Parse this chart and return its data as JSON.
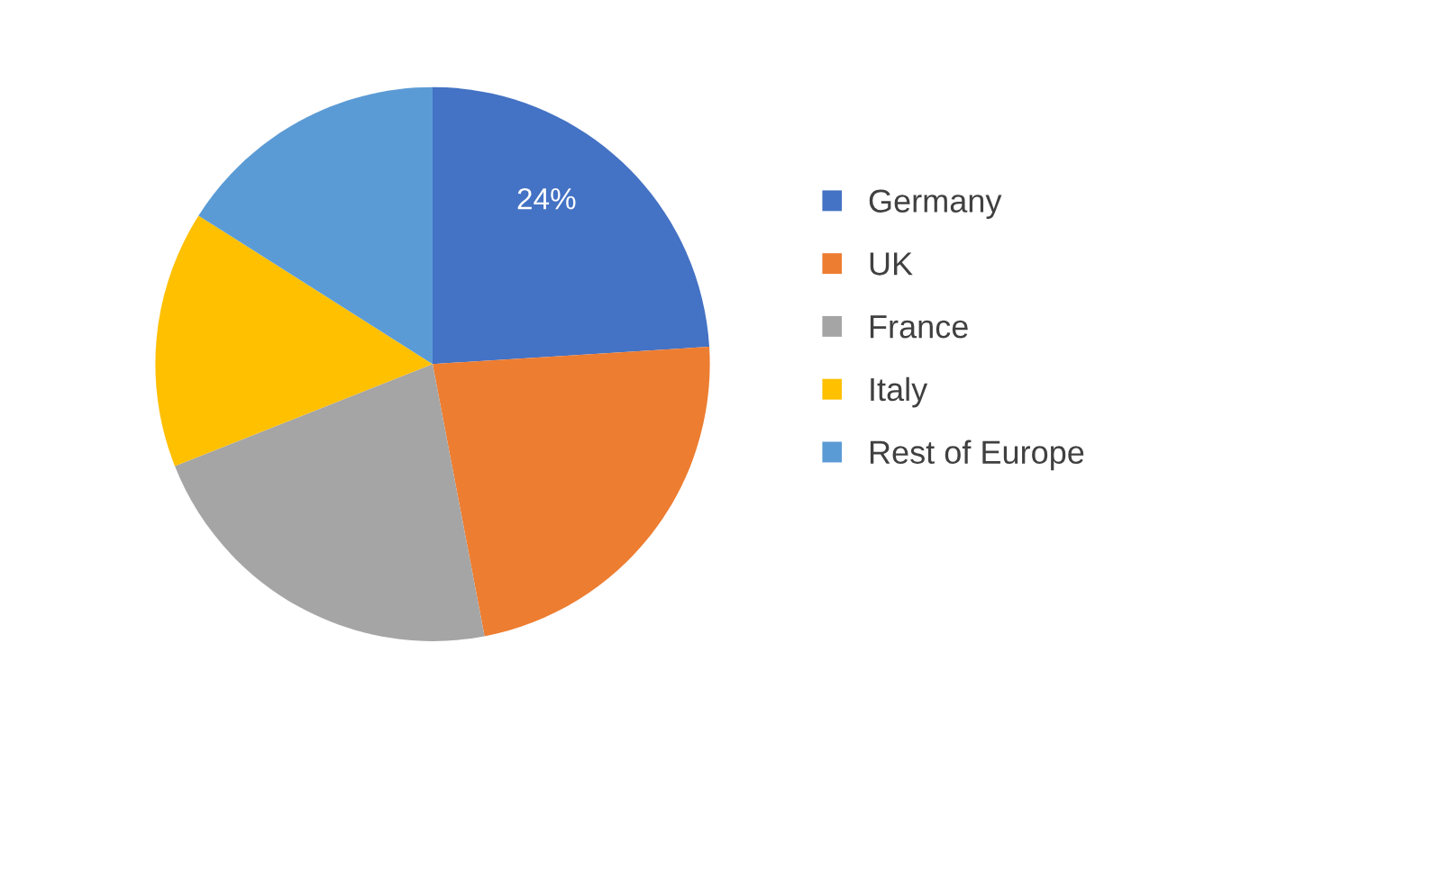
{
  "chart_data": {
    "type": "pie",
    "categories": [
      "Germany",
      "UK",
      "France",
      "Italy",
      "Rest of Europe"
    ],
    "values": [
      24,
      23,
      22,
      15,
      16
    ],
    "colors": [
      "#4472c4",
      "#ed7d31",
      "#a5a5a5",
      "#ffc000",
      "#5b9bd5"
    ],
    "value_labels": [
      "24%",
      null,
      null,
      null,
      null
    ],
    "legend": "right"
  }
}
